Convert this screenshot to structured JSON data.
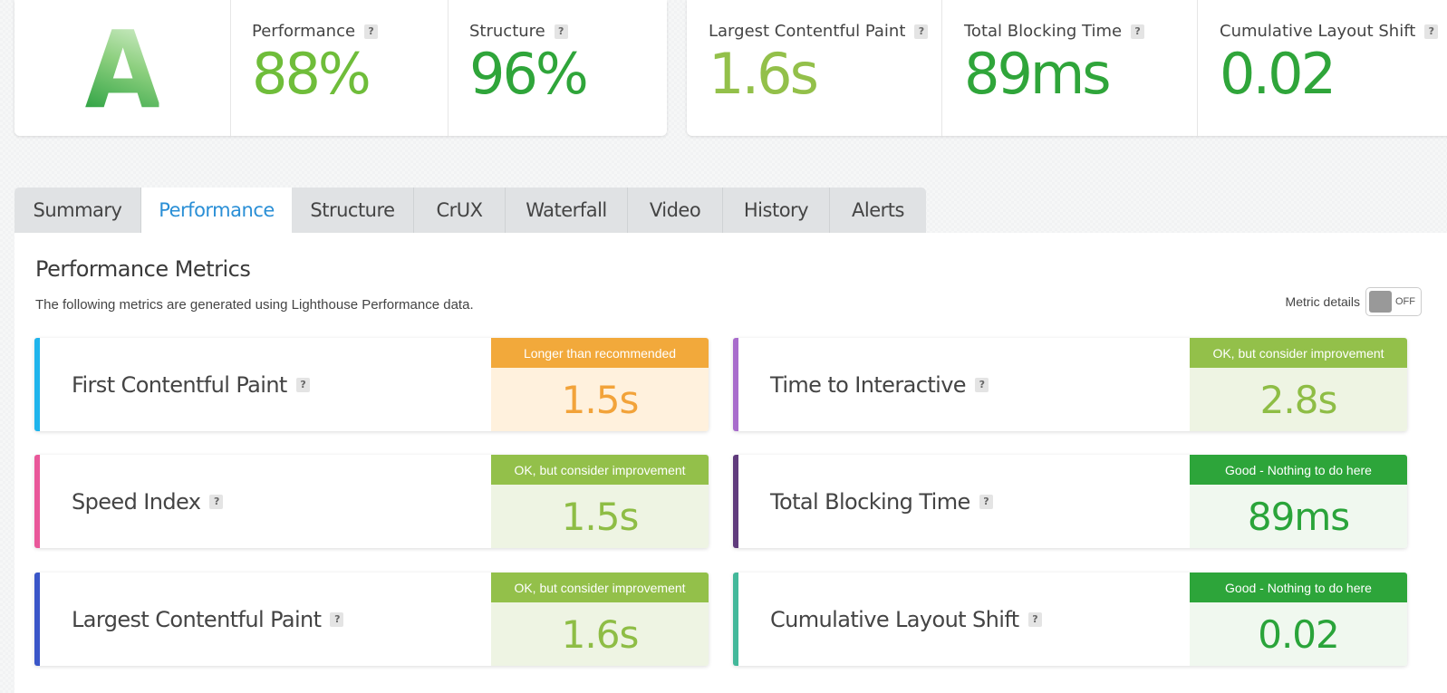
{
  "grade": {
    "letter": "A"
  },
  "scores": [
    {
      "label": "Performance",
      "value": "88%",
      "color": "#6fbd3a"
    },
    {
      "label": "Structure",
      "value": "96%",
      "color": "#2fa53a"
    }
  ],
  "web_vitals": [
    {
      "label": "Largest Contentful Paint",
      "value": "1.6s",
      "color": "#93c04a"
    },
    {
      "label": "Total Blocking Time",
      "value": "89ms",
      "color": "#2fa53a"
    },
    {
      "label": "Cumulative Layout Shift",
      "value": "0.02",
      "color": "#2fa53a"
    }
  ],
  "help_mark": "?",
  "tabs": [
    {
      "label": "Summary",
      "active": false
    },
    {
      "label": "Performance",
      "active": true
    },
    {
      "label": "Structure",
      "active": false
    },
    {
      "label": "CrUX",
      "active": false
    },
    {
      "label": "Waterfall",
      "active": false
    },
    {
      "label": "Video",
      "active": false
    },
    {
      "label": "History",
      "active": false
    },
    {
      "label": "Alerts",
      "active": false
    }
  ],
  "panel": {
    "title": "Performance Metrics",
    "subtitle": "The following metrics are generated using Lighthouse Performance data.",
    "metric_details_label": "Metric details",
    "toggle_state": "OFF"
  },
  "metrics": [
    {
      "name": "First Contentful Paint",
      "status": "Longer than recommended",
      "value": "1.5s",
      "accent": "#1fb4ec",
      "level": "orange"
    },
    {
      "name": "Time to Interactive",
      "status": "OK, but consider improvement",
      "value": "2.8s",
      "accent": "#a86ccc",
      "level": "lime"
    },
    {
      "name": "Speed Index",
      "status": "OK, but consider improvement",
      "value": "1.5s",
      "accent": "#e9589a",
      "level": "lime"
    },
    {
      "name": "Total Blocking Time",
      "status": "Good - Nothing to do here",
      "value": "89ms",
      "accent": "#5f3b7c",
      "level": "green"
    },
    {
      "name": "Largest Contentful Paint",
      "status": "OK, but consider improvement",
      "value": "1.6s",
      "accent": "#3a56c8",
      "level": "lime"
    },
    {
      "name": "Cumulative Layout Shift",
      "status": "Good - Nothing to do here",
      "value": "0.02",
      "accent": "#43b89a",
      "level": "green"
    }
  ]
}
